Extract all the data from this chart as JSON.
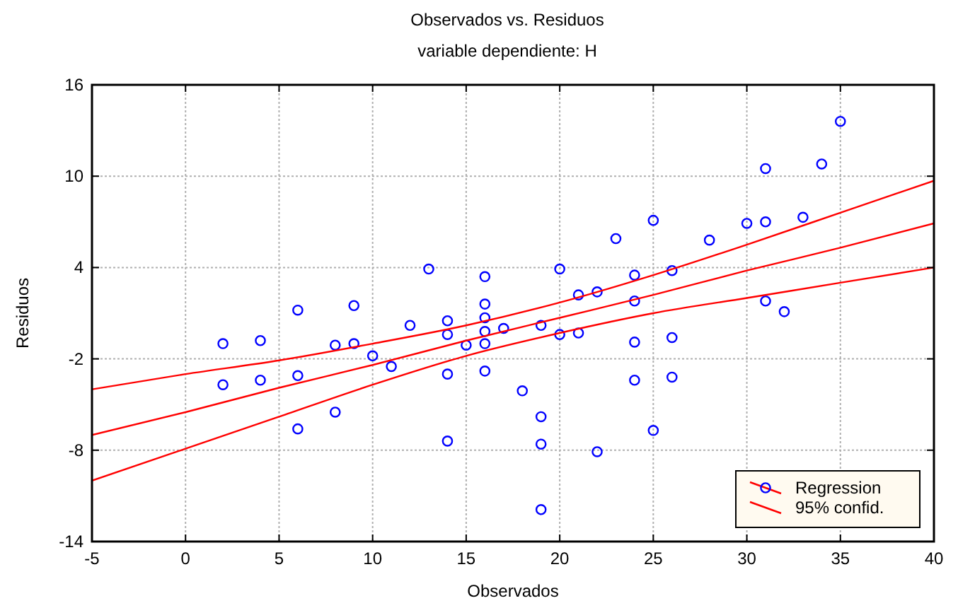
{
  "chart_data": {
    "type": "scatter",
    "title": "Observados vs. Residuos",
    "subtitle": "variable dependiente: H",
    "xlabel": "Observados",
    "ylabel": "Residuos",
    "xlim": [
      -5,
      40
    ],
    "xticks": [
      -5,
      0,
      5,
      10,
      15,
      20,
      25,
      30,
      35,
      40
    ],
    "ylim": [
      -14,
      16
    ],
    "yticks": [
      -14,
      -8,
      -2,
      4,
      10,
      16
    ],
    "grid": true,
    "legend": "bottom right",
    "marker": "circle",
    "series": [
      {
        "color": "#0000ff",
        "x": [
          2,
          2,
          4,
          4,
          6,
          6,
          6,
          8,
          8,
          9,
          9,
          10,
          11,
          12,
          13,
          14,
          14,
          14,
          14,
          15,
          16,
          16,
          16,
          16,
          16,
          16,
          17,
          18,
          19,
          19,
          19,
          19,
          20,
          20,
          21,
          21,
          22,
          22,
          23,
          24,
          24,
          24,
          24,
          25,
          25,
          26,
          26,
          26,
          28,
          30,
          31,
          31,
          31,
          32,
          33,
          34,
          35
        ],
        "values": [
          -1.0,
          -3.7,
          -0.8,
          -3.4,
          1.2,
          -3.1,
          -6.6,
          -1.1,
          -5.5,
          1.5,
          -1.0,
          -1.8,
          -2.5,
          0.2,
          3.9,
          0.5,
          -0.4,
          -3.0,
          -7.4,
          -1.1,
          3.4,
          1.6,
          0.7,
          -0.2,
          -1.0,
          -2.8,
          0.0,
          -4.1,
          0.2,
          -5.8,
          -7.6,
          -11.9,
          3.9,
          -0.4,
          2.2,
          -0.3,
          2.4,
          -8.1,
          5.9,
          3.5,
          1.8,
          -0.9,
          -3.4,
          7.1,
          -6.7,
          3.8,
          -0.6,
          -3.2,
          5.8,
          6.9,
          10.5,
          7.0,
          1.8,
          1.1,
          7.3,
          10.8,
          13.6
        ]
      },
      {
        "type": "line",
        "name": "Regression",
        "color": "#ff0000",
        "marker": "none",
        "x": [
          -5,
          0,
          5,
          10,
          15,
          20,
          25,
          30,
          35,
          40
        ],
        "values": [
          -7.0,
          -5.5,
          -3.9,
          -2.4,
          -0.8,
          0.7,
          2.2,
          3.8,
          5.3,
          6.9
        ]
      },
      {
        "type": "line",
        "name": "95% confid.",
        "color": "#ff0000",
        "marker": "none",
        "x": [
          -5,
          0,
          5,
          10,
          15,
          20,
          25,
          30,
          35,
          40
        ],
        "values": [
          -4.0,
          -3.0,
          -2.1,
          -1.0,
          0.2,
          1.7,
          3.5,
          5.5,
          7.6,
          9.7
        ]
      },
      {
        "type": "line",
        "color": "#ff0000",
        "marker": "none",
        "x": [
          -5,
          0,
          5,
          10,
          15,
          20,
          25,
          30,
          35,
          40
        ],
        "values": [
          -10.0,
          -7.9,
          -5.8,
          -3.7,
          -1.8,
          -0.3,
          1.0,
          2.0,
          3.0,
          4.0
        ]
      }
    ]
  }
}
